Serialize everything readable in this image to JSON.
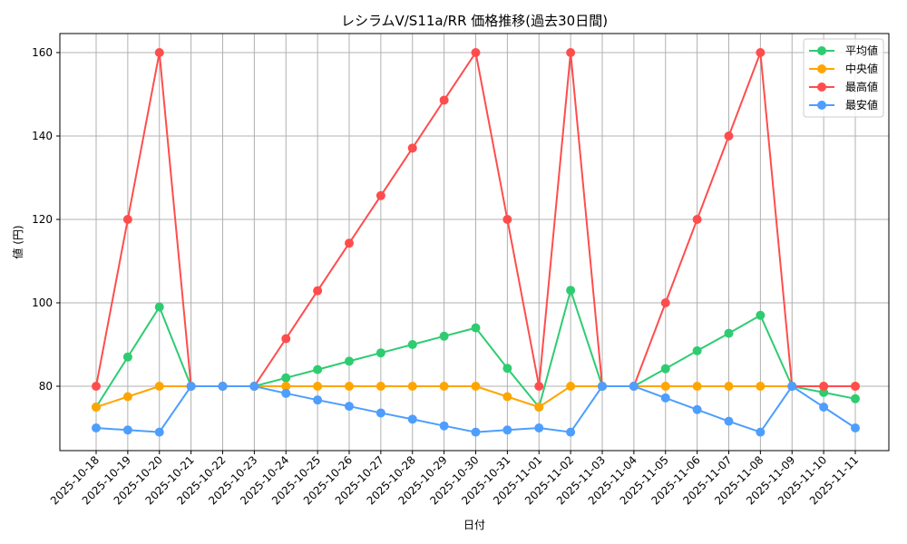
{
  "chart_data": {
    "type": "line",
    "title": "レシラムV/S11a/RR 価格推移(過去30日間)",
    "xlabel": "日付",
    "ylabel": "値 (円)",
    "ylim": [
      64.5,
      165
    ],
    "yticks": [
      80,
      100,
      120,
      140,
      160
    ],
    "grid": true,
    "legend_position": "upper right",
    "categories": [
      "2025-10-18",
      "2025-10-19",
      "2025-10-20",
      "2025-10-21",
      "2025-10-22",
      "2025-10-23",
      "2025-10-24",
      "2025-10-25",
      "2025-10-26",
      "2025-10-27",
      "2025-10-28",
      "2025-10-29",
      "2025-10-30",
      "2025-10-31",
      "2025-11-01",
      "2025-11-02",
      "2025-11-03",
      "2025-11-04",
      "2025-11-05",
      "2025-11-06",
      "2025-11-07",
      "2025-11-08",
      "2025-11-09",
      "2025-11-10",
      "2025-11-11"
    ],
    "series": [
      {
        "name": "平均値",
        "color": "#2ecc71",
        "values": [
          75,
          87,
          99,
          80,
          80,
          80,
          82,
          84,
          86,
          88,
          90,
          92,
          94,
          84.3,
          75,
          103,
          80,
          80,
          84.2,
          88.5,
          92.7,
          97,
          80,
          78.5,
          77
        ]
      },
      {
        "name": "中央値",
        "color": "#ffa500",
        "values": [
          75,
          77.5,
          80,
          80,
          80,
          80,
          80,
          80,
          80,
          80,
          80,
          80,
          80,
          77.5,
          75,
          80,
          80,
          80,
          80,
          80,
          80,
          80,
          80,
          80,
          80
        ]
      },
      {
        "name": "最高値",
        "color": "#ff4d4d",
        "values": [
          80,
          120,
          160,
          80,
          80,
          80,
          91.4,
          102.9,
          114.3,
          125.7,
          137.1,
          148.6,
          160,
          120,
          80,
          160,
          80,
          80,
          100,
          120,
          140,
          160,
          80,
          80,
          80
        ]
      },
      {
        "name": "最安値",
        "color": "#4d9eff",
        "values": [
          70,
          69.5,
          69,
          80,
          80,
          80,
          78.3,
          76.7,
          75.2,
          73.6,
          72.1,
          70.5,
          69,
          69.5,
          70,
          69,
          80,
          80,
          77.2,
          74.4,
          71.6,
          69,
          80,
          75,
          70
        ]
      }
    ]
  }
}
